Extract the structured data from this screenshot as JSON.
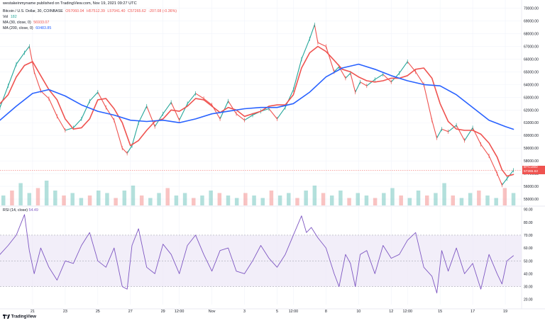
{
  "header": {
    "published": "westakeinmyname published on TradingView.com, Nov 19, 2021 09:27 UTC",
    "symbol": "Bitcoin / U.S. Dollar, 30, COINBASE",
    "open": "O57060.04",
    "high": "H57512.39",
    "low": "L57041.40",
    "close": "C57265.62",
    "change": "-207.08 (-0.36%)",
    "vol_label": "Vol",
    "vol_value": "182",
    "ma30_label": "MA (30, close, 0)",
    "ma30_value": "56933.07",
    "ma200_label": "MA (200, close, 0)",
    "ma200_value": "60483.85"
  },
  "rsi_panel": {
    "label": "RSI (14, close)",
    "value": "54.49"
  },
  "price_tag": {
    "symbol": "BTCUSD",
    "price": "57265.62",
    "countdown": "02:57"
  },
  "logo": {
    "text": "TradingView"
  },
  "colors": {
    "up": "#26a69a",
    "down": "#ef5350",
    "ma30": "#ef5350",
    "ma200": "#2962ff",
    "rsi": "#7e57c2",
    "rsi_band": "#ede7f6"
  },
  "chart_data": [
    {
      "type": "line",
      "panel": "price",
      "currency": "USD",
      "y_ticks": [
        "70000.00",
        "69000.00",
        "68000.00",
        "67000.00",
        "66000.00",
        "65000.00",
        "64000.00",
        "63000.00",
        "62000.00",
        "61000.00",
        "60000.00",
        "59000.00",
        "58000.00",
        "57000.00",
        "56000.00",
        "55000.00"
      ],
      "ylim": [
        54500,
        70200
      ],
      "x_ticks": [
        "21",
        "23",
        "25",
        "27",
        "29",
        "12:00",
        "Nov",
        "3",
        "5",
        "12:00",
        "8",
        "10",
        "12",
        "12:00",
        "15",
        "17",
        "19"
      ],
      "x_tick_positions": [
        0.5,
        2.5,
        4.5,
        6.5,
        8.5,
        9.5,
        11.5,
        13.5,
        15.5,
        16.5,
        18.5,
        20.5,
        22.5,
        23.5,
        25.5,
        27.5,
        29.5
      ],
      "xlim": [
        -1.5,
        30.5
      ],
      "series": [
        {
          "name": "Bitcoin / U.S. Dollar",
          "x": [
            -1.5,
            -1,
            -0.5,
            0,
            0.3,
            0.6,
            1,
            1.5,
            2,
            2.5,
            3,
            3.5,
            4,
            4.5,
            5,
            5.5,
            6,
            6.3,
            6.6,
            7,
            7.5,
            8,
            8.5,
            9,
            9.5,
            10,
            10.5,
            11,
            11.5,
            12,
            12.5,
            13,
            13.5,
            14,
            14.5,
            15,
            15.5,
            16,
            16.5,
            17,
            17.5,
            17.8,
            18,
            18.5,
            19,
            19.3,
            19.7,
            20,
            20.3,
            20.6,
            21,
            21.5,
            22,
            22.5,
            23,
            23.5,
            24,
            24.5,
            25,
            25.3,
            25.6,
            26,
            26.5,
            27,
            27.5,
            28,
            28.5,
            29,
            29.3,
            29.6,
            30
          ],
          "values": [
            62200,
            63900,
            65600,
            66500,
            67000,
            65000,
            63500,
            62900,
            61500,
            60400,
            60600,
            61300,
            62700,
            63400,
            62200,
            61200,
            59000,
            58600,
            59200,
            61000,
            62300,
            60700,
            61700,
            62600,
            61200,
            62500,
            63300,
            62900,
            62400,
            61300,
            62700,
            61700,
            61200,
            61600,
            61900,
            62100,
            61300,
            62200,
            63600,
            66000,
            67600,
            68700,
            67300,
            67000,
            65000,
            65400,
            64500,
            64900,
            63400,
            64200,
            63900,
            64400,
            64800,
            64200,
            64900,
            65800,
            65000,
            64000,
            61200,
            59800,
            60500,
            60300,
            60800,
            59600,
            60600,
            59300,
            58400,
            57000,
            56100,
            56600,
            57265
          ]
        },
        {
          "name": "MA (30, close, 0)",
          "x": [
            -1.5,
            -1,
            -0.5,
            0,
            0.5,
            1,
            1.5,
            2,
            2.5,
            3,
            3.5,
            4,
            4.5,
            5,
            5.5,
            6,
            6.5,
            7,
            7.5,
            8,
            8.5,
            9,
            9.5,
            10,
            10.5,
            11,
            11.5,
            12,
            12.5,
            13,
            13.5,
            14,
            14.5,
            15,
            15.5,
            16,
            16.5,
            17,
            17.5,
            18,
            18.5,
            19,
            19.5,
            20,
            20.5,
            21,
            21.5,
            22,
            22.5,
            23,
            23.5,
            24,
            24.5,
            25,
            25.5,
            26,
            26.5,
            27,
            27.5,
            28,
            28.5,
            29,
            29.3,
            29.6,
            30
          ],
          "values": [
            62500,
            63200,
            64600,
            65500,
            65800,
            64700,
            63600,
            62800,
            61300,
            60500,
            60600,
            61300,
            62800,
            62900,
            62100,
            61000,
            59200,
            59600,
            60400,
            61100,
            61300,
            62000,
            61900,
            62300,
            62900,
            62800,
            62300,
            61800,
            62200,
            62000,
            61500,
            61700,
            61900,
            62300,
            62400,
            62400,
            63200,
            65300,
            66500,
            67000,
            66600,
            65900,
            65200,
            65000,
            64600,
            64300,
            64200,
            64300,
            64500,
            64500,
            64700,
            65200,
            65300,
            64500,
            62500,
            61100,
            60500,
            60400,
            60400,
            60100,
            59400,
            58300,
            57300,
            56800,
            56933
          ]
        },
        {
          "name": "MA (200, close, 0)",
          "x": [
            -1.5,
            -0.5,
            0.5,
            1.5,
            2.5,
            3.5,
            4.5,
            5.5,
            6.5,
            7.5,
            8.5,
            9.5,
            10.5,
            11.5,
            12.5,
            13.5,
            14.5,
            15.5,
            16.5,
            17.5,
            18.5,
            19.5,
            20.5,
            21.5,
            22.5,
            23.5,
            24.5,
            25.5,
            26.5,
            27.5,
            28.5,
            29.5,
            30
          ],
          "values": [
            61200,
            62300,
            63300,
            63600,
            63100,
            62400,
            61900,
            61600,
            61200,
            61100,
            61200,
            61000,
            61300,
            61700,
            61900,
            62100,
            62200,
            62200,
            62500,
            63400,
            64600,
            65300,
            65600,
            65200,
            64700,
            64300,
            64000,
            63900,
            63200,
            62200,
            61200,
            60700,
            60483
          ]
        }
      ]
    },
    {
      "type": "bar",
      "panel": "volume",
      "name": "Vol",
      "note": "volume histogram beneath price (relative magnitude)",
      "values": [
        0.4,
        0.6,
        0.9,
        0.5,
        0.7,
        1.0,
        0.6,
        0.4,
        0.5,
        0.3,
        0.4,
        0.6,
        0.5,
        0.3,
        0.6,
        0.8,
        0.4,
        0.3,
        0.5,
        0.7,
        0.4,
        0.5,
        0.3,
        0.4,
        0.6,
        0.5,
        0.4,
        0.3,
        0.5,
        0.4,
        0.3,
        0.6,
        0.4,
        0.5,
        0.3,
        0.6,
        0.8,
        0.5,
        0.4,
        0.6,
        0.3,
        0.5,
        0.4,
        0.3,
        0.5,
        0.7,
        0.4,
        0.3,
        0.6,
        0.4,
        0.5,
        0.9,
        0.4,
        0.3,
        0.5,
        0.6,
        0.4,
        0.3,
        0.7,
        0.5
      ]
    },
    {
      "type": "line",
      "panel": "rsi",
      "y_ticks": [
        "90.00",
        "80.00",
        "70.00",
        "60.00",
        "50.00",
        "40.00",
        "30.00",
        "20.00"
      ],
      "ylim": [
        16,
        92
      ],
      "band": [
        30,
        70
      ],
      "mid": 50,
      "xlim": [
        -1.5,
        30.5
      ],
      "series": [
        {
          "name": "RSI (14, close)",
          "x": [
            -1.5,
            -1,
            -0.5,
            0,
            0.3,
            0.6,
            1,
            1.5,
            2,
            2.5,
            3,
            3.5,
            4,
            4.5,
            5,
            5.5,
            6,
            6.3,
            6.6,
            7,
            7.5,
            8,
            8.5,
            9,
            9.5,
            10,
            10.5,
            11,
            11.5,
            12,
            12.5,
            13,
            13.5,
            14,
            14.5,
            15,
            15.5,
            16,
            16.5,
            17,
            17.3,
            17.6,
            18,
            18.5,
            19,
            19.3,
            19.7,
            20,
            20.3,
            20.6,
            21,
            21.5,
            22,
            22.5,
            23,
            23.5,
            24,
            24.5,
            25,
            25.3,
            25.6,
            26,
            26.5,
            27,
            27.5,
            28,
            28.5,
            29,
            29.3,
            29.6,
            30
          ],
          "values": [
            55,
            62,
            70,
            86,
            58,
            40,
            60,
            45,
            35,
            50,
            48,
            62,
            72,
            50,
            45,
            60,
            30,
            28,
            62,
            75,
            45,
            40,
            63,
            55,
            40,
            62,
            70,
            55,
            42,
            58,
            60,
            42,
            40,
            50,
            62,
            52,
            45,
            55,
            70,
            85,
            72,
            76,
            68,
            60,
            40,
            30,
            55,
            48,
            30,
            55,
            58,
            40,
            62,
            52,
            55,
            66,
            72,
            45,
            38,
            25,
            58,
            42,
            60,
            40,
            48,
            28,
            55,
            40,
            32,
            50,
            54
          ]
        }
      ]
    }
  ]
}
